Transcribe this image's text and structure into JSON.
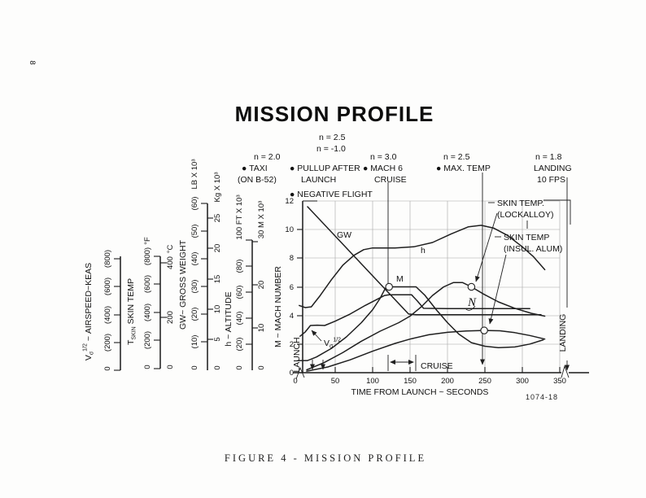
{
  "page": {
    "number": "8",
    "title": "MISSION PROFILE",
    "caption": "FIGURE 4 - MISSION PROFILE",
    "figure_code": "1074-18"
  },
  "annotations": {
    "pullup_n": [
      "n = 2.5",
      "n = -1.0"
    ],
    "taxi": [
      "n = 2.0",
      "● TAXI",
      "(ON B-52)"
    ],
    "pullup": [
      "● PULLUP AFTER",
      "LAUNCH"
    ],
    "negative": [
      "● NEGATIVE FLIGHT"
    ],
    "mach6": [
      "n = 3.0",
      "● MACH 6",
      "CRUISE"
    ],
    "maxtemp": [
      "n = 2.5",
      "● MAX. TEMP"
    ],
    "landing": [
      "n = 1.8",
      "LANDING",
      "10 FPS"
    ],
    "skin_lockalloy": [
      "SKIN TEMP.",
      "(LOCKALLOY)"
    ],
    "skin_insul": [
      "SKIN TEMP",
      "(INSUL. ALUM)"
    ],
    "launch_marker": "LAUNCH",
    "cruise_marker": "CRUISE",
    "landing_marker": "LANDING",
    "script_n": "N"
  },
  "axes": {
    "airspeed": {
      "sym": "V",
      "sub": "σ",
      "sup": "1/2",
      "rest": " ~ AIRSPEED~KEAS",
      "ticks": [
        "(200)",
        "(400)",
        "(600)",
        "(800)"
      ],
      "zero": "0"
    },
    "skin_temp": {
      "sym": "T",
      "sub": "SKIN",
      "rest": "  SKIN TEMP",
      "f_ticks": [
        "(200)",
        "(400)",
        "(600)",
        "(800)"
      ],
      "f_unit": "°F",
      "c_ticks": [
        "200",
        "400"
      ],
      "c_unit": "°C",
      "zero_f": "0",
      "zero_c": "0"
    },
    "gross_weight": {
      "label": "GW~ GROSS WEIGHT",
      "lb_ticks": [
        "(10)",
        "(20)",
        "(30)",
        "(40)",
        "(50)",
        "(60)"
      ],
      "lb_unit": "LB X 10³",
      "kg_ticks": [
        "5",
        "10",
        "15",
        "20",
        "25"
      ],
      "kg_unit": "Kg X 10³",
      "zero_lb": "0",
      "zero_kg": "0"
    },
    "altitude": {
      "label": "h ~ ALTITUDE",
      "ft_ticks": [
        "(20)",
        "(40)",
        "(60)",
        "(80)"
      ],
      "ft_unit": "100 FT X 10³",
      "m_ticks": [
        "10",
        "20"
      ],
      "m_unit": "30 M X 10³",
      "zero_ft": "0",
      "zero_m": "0"
    },
    "mach": {
      "label": "M ~ MACH NUMBER",
      "ticks": [
        "0",
        "2",
        "4",
        "6",
        "8",
        "10",
        "12"
      ]
    },
    "time": {
      "label": "TIME FROM LAUNCH ~ SECONDS",
      "ticks": [
        "0",
        "50",
        "100",
        "150",
        "200",
        "250",
        "300",
        "350"
      ]
    }
  },
  "curve_labels": {
    "gw": "GW",
    "h": "h",
    "m": "M",
    "v_sym": "V",
    "v_sub": "σ",
    "v_sup": "1/2"
  },
  "chart_data": {
    "type": "line",
    "title": "MISSION PROFILE",
    "xlabel": "TIME FROM LAUNCH ~ SECONDS",
    "x_range": [
      0,
      350
    ],
    "y_display_axis": "M ~ MACH NUMBER, 0-12; other curves read on their own rotated reference scales (airspeed KEAS 0-800, skin temp 0-800 F, gross weight 0-60k LB, altitude 0-100k FT)",
    "grid": true,
    "series": [
      {
        "name": "gross-weight",
        "label": "GW",
        "points": [
          [
            13,
            11.6
          ],
          [
            148,
            4.1
          ],
          [
            158,
            4.05
          ],
          [
            325,
            4.05
          ]
        ]
      },
      {
        "name": "altitude",
        "label": "h",
        "points": [
          [
            2,
            4.7
          ],
          [
            10,
            4.55
          ],
          [
            18,
            4.6
          ],
          [
            30,
            5.4
          ],
          [
            45,
            6.5
          ],
          [
            60,
            7.5
          ],
          [
            75,
            8.2
          ],
          [
            88,
            8.6
          ],
          [
            100,
            8.72
          ],
          [
            130,
            8.72
          ],
          [
            155,
            8.8
          ],
          [
            180,
            9.1
          ],
          [
            205,
            9.7
          ],
          [
            228,
            10.2
          ],
          [
            245,
            10.3
          ],
          [
            262,
            10.1
          ],
          [
            280,
            9.6
          ],
          [
            300,
            8.8
          ],
          [
            315,
            8.1
          ],
          [
            330,
            7.2
          ]
        ]
      },
      {
        "name": "mach",
        "label": "M",
        "points": [
          [
            0,
            0.85
          ],
          [
            13,
            0.85
          ],
          [
            25,
            1.1
          ],
          [
            45,
            1.7
          ],
          [
            65,
            2.5
          ],
          [
            85,
            3.5
          ],
          [
            100,
            4.4
          ],
          [
            110,
            5.2
          ],
          [
            117,
            5.9
          ],
          [
            122,
            6.0
          ],
          [
            158,
            6.0
          ],
          [
            170,
            5.4
          ],
          [
            185,
            4.4
          ],
          [
            200,
            3.5
          ],
          [
            215,
            2.7
          ],
          [
            232,
            2.1
          ],
          [
            250,
            1.85
          ],
          [
            268,
            1.75
          ],
          [
            290,
            1.8
          ],
          [
            310,
            2.0
          ],
          [
            328,
            2.3
          ]
        ]
      },
      {
        "name": "airspeed",
        "label": "Vσ 1/2",
        "points": [
          [
            3,
            2.55
          ],
          [
            10,
            2.85
          ],
          [
            17,
            3.3
          ],
          [
            26,
            3.32
          ],
          [
            36,
            3.3
          ],
          [
            50,
            3.6
          ],
          [
            70,
            4.1
          ],
          [
            90,
            4.7
          ],
          [
            105,
            5.1
          ],
          [
            116,
            5.4
          ],
          [
            122,
            5.45
          ],
          [
            152,
            5.45
          ],
          [
            160,
            5.0
          ],
          [
            168,
            4.5
          ],
          [
            200,
            4.48
          ],
          [
            250,
            4.48
          ],
          [
            310,
            4.48
          ]
        ]
      },
      {
        "name": "skin-temp-lockalloy",
        "label": "SKIN TEMP. (LOCKALLOY)",
        "points": [
          [
            12,
            0.2
          ],
          [
            35,
            0.7
          ],
          [
            60,
            1.4
          ],
          [
            85,
            2.2
          ],
          [
            110,
            2.9
          ],
          [
            135,
            3.5
          ],
          [
            150,
            3.95
          ],
          [
            165,
            4.6
          ],
          [
            180,
            5.4
          ],
          [
            195,
            6.0
          ],
          [
            208,
            6.3
          ],
          [
            220,
            6.3
          ],
          [
            232,
            6.0
          ],
          [
            248,
            5.5
          ],
          [
            268,
            4.95
          ],
          [
            290,
            4.5
          ],
          [
            312,
            4.15
          ],
          [
            330,
            3.95
          ]
        ]
      },
      {
        "name": "skin-temp-insul-alum",
        "label": "SKIN TEMP (INSUL. ALUM)",
        "points": [
          [
            12,
            0.1
          ],
          [
            40,
            0.4
          ],
          [
            70,
            0.9
          ],
          [
            100,
            1.5
          ],
          [
            130,
            2.05
          ],
          [
            150,
            2.35
          ],
          [
            175,
            2.65
          ],
          [
            200,
            2.82
          ],
          [
            225,
            2.92
          ],
          [
            249,
            2.95
          ],
          [
            270,
            2.93
          ],
          [
            290,
            2.8
          ],
          [
            310,
            2.6
          ],
          [
            330,
            2.35
          ]
        ]
      }
    ],
    "markers": [
      {
        "t": 122,
        "d": 6.0
      },
      {
        "t": 232,
        "d": 6.0
      },
      {
        "t": 249,
        "d": 2.95
      }
    ],
    "events": {
      "launch_t": 20,
      "cruise_span": [
        121,
        158
      ],
      "max_temp_t": 247
    }
  }
}
